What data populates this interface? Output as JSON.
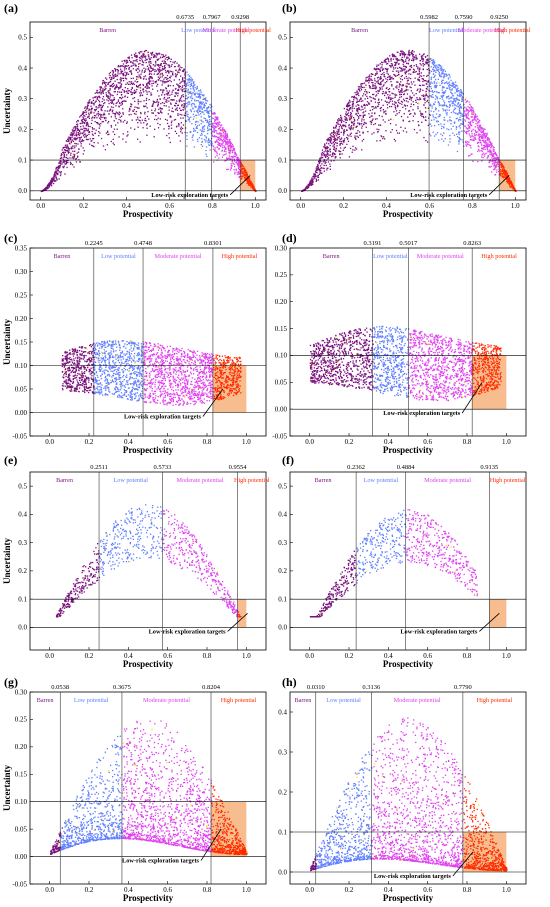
{
  "colors": {
    "barren": "#7b0f7f",
    "low": "#5f7fff",
    "moderate": "#e040f0",
    "high": "#ff2a00",
    "target_box": "#f7b27a",
    "known_deposits": "#ffe000"
  },
  "chart_data": [
    {
      "panel": "(a)",
      "type": "scatter",
      "xlabel": "Prospectivity",
      "ylabel": "Uncertainty",
      "xlim": [
        -0.05,
        1.05
      ],
      "ylim": [
        -0.03,
        0.55
      ],
      "xticks": [
        "0.0",
        "0.2",
        "0.4",
        "0.6",
        "0.8",
        "1.0"
      ],
      "yticks": [
        "0.0",
        "0.1",
        "0.2",
        "0.3",
        "0.4",
        "0.5"
      ],
      "thresholds": [
        0.6735,
        0.7967,
        0.9298
      ],
      "threshold_labels": [
        "0.6735",
        "0.7967",
        "0.9298"
      ],
      "zones": [
        "Barren",
        "Low potential",
        "Moderate potential",
        "High potential"
      ],
      "uncertainty_cutoff": 0.1,
      "target_label": "Low-risk exploration targets",
      "shape": "arch",
      "peak": 0.46,
      "floor": 0.05,
      "center": 0.45,
      "xmin": 0.0,
      "xmax": 1.0
    },
    {
      "panel": "(b)",
      "type": "scatter",
      "xlabel": "Prospectivity",
      "ylabel": "",
      "xlim": [
        -0.05,
        1.05
      ],
      "ylim": [
        -0.03,
        0.55
      ],
      "xticks": [
        "0.0",
        "0.2",
        "0.4",
        "0.6",
        "0.8",
        "1.0"
      ],
      "yticks": [
        "0.0",
        "0.1",
        "0.2",
        "0.3",
        "0.4",
        "0.5"
      ],
      "thresholds": [
        0.5982,
        0.759,
        0.925
      ],
      "threshold_labels": [
        "0.5982",
        "0.7590",
        "0.9250"
      ],
      "zones": [
        "Barren",
        "Low potential",
        "Moderate potential",
        "High potential"
      ],
      "uncertainty_cutoff": 0.1,
      "target_label": "Low-risk exploration targets",
      "shape": "arch",
      "peak": 0.46,
      "floor": 0.05,
      "center": 0.45,
      "xmin": 0.0,
      "xmax": 1.0
    },
    {
      "panel": "(c)",
      "type": "scatter",
      "xlabel": "Prospectivity",
      "ylabel": "Uncertainty",
      "xlim": [
        -0.1,
        1.1
      ],
      "ylim": [
        -0.05,
        0.35
      ],
      "xticks": [
        "0.0",
        "0.2",
        "0.4",
        "0.6",
        "0.8",
        "1.0"
      ],
      "yticks": [
        "-0.05",
        "0.00",
        "0.05",
        "0.10",
        "0.15",
        "0.20",
        "0.25",
        "0.30",
        "0.35"
      ],
      "thresholds": [
        0.2245,
        0.4748,
        0.8301
      ],
      "threshold_labels": [
        "0.2245",
        "0.4748",
        "0.8301"
      ],
      "zones": [
        "Barren",
        "Low potential",
        "Moderate potential",
        "High potential"
      ],
      "uncertainty_cutoff": 0.1,
      "target_label": "Low-risk exploration targets",
      "shape": "band",
      "peak": 0.16,
      "floor": 0.03,
      "center": 0.45,
      "xmin": 0.06,
      "xmax": 0.97
    },
    {
      "panel": "(d)",
      "type": "scatter",
      "xlabel": "Prospectivity",
      "ylabel": "",
      "xlim": [
        -0.1,
        1.1
      ],
      "ylim": [
        -0.05,
        0.3
      ],
      "xticks": [
        "0.0",
        "0.2",
        "0.4",
        "0.6",
        "0.8",
        "1.0"
      ],
      "yticks": [
        "-0.05",
        "0.00",
        "0.05",
        "0.10",
        "0.15",
        "0.20",
        "0.25",
        "0.30"
      ],
      "thresholds": [
        0.3191,
        0.5017,
        0.8263
      ],
      "threshold_labels": [
        "0.3191",
        "0.5017",
        "0.8263"
      ],
      "zones": [
        "Barren",
        "Low potential",
        "Moderate potential",
        "High potential"
      ],
      "uncertainty_cutoff": 0.1,
      "target_label": "Low-risk exploration targets",
      "shape": "band",
      "peak": 0.16,
      "floor": 0.04,
      "center": 0.45,
      "xmin": 0.0,
      "xmax": 0.97
    },
    {
      "panel": "(e)",
      "type": "scatter",
      "xlabel": "Prospectivity",
      "ylabel": "Uncertainty",
      "xlim": [
        -0.1,
        1.1
      ],
      "ylim": [
        -0.08,
        0.55
      ],
      "xticks": [
        "0.0",
        "0.2",
        "0.4",
        "0.6",
        "0.8",
        "1.0"
      ],
      "yticks": [
        "0.0",
        "0.1",
        "0.2",
        "0.3",
        "0.4",
        "0.5"
      ],
      "thresholds": [
        0.2511,
        0.5733,
        0.9554
      ],
      "threshold_labels": [
        "0.2511",
        "0.5733",
        "0.9554"
      ],
      "zones": [
        "Barren",
        "Low potential",
        "Moderate potential",
        "High potential"
      ],
      "uncertainty_cutoff": 0.1,
      "target_label": "Low-risk exploration targets",
      "shape": "sparse",
      "peak": 0.44,
      "floor": 0.04,
      "center": 0.5,
      "xmin": 0.03,
      "xmax": 0.97
    },
    {
      "panel": "(f)",
      "type": "scatter",
      "xlabel": "Prospectivity",
      "ylabel": "",
      "xlim": [
        -0.1,
        1.1
      ],
      "ylim": [
        -0.08,
        0.55
      ],
      "xticks": [
        "0.0",
        "0.2",
        "0.4",
        "0.6",
        "0.8",
        "1.0"
      ],
      "yticks": [
        "0.0",
        "0.1",
        "0.2",
        "0.3",
        "0.4",
        "0.5"
      ],
      "thresholds": [
        0.2362,
        0.4884,
        0.9135
      ],
      "threshold_labels": [
        "0.2362",
        "0.4884",
        "0.9135"
      ],
      "zones": [
        "Barren",
        "Low potential",
        "Moderate potential",
        "High potential"
      ],
      "uncertainty_cutoff": 0.1,
      "target_label": "Low-risk exploration targets",
      "shape": "sparse",
      "peak": 0.42,
      "floor": 0.04,
      "center": 0.45,
      "xmin": 0.0,
      "xmax": 0.85
    },
    {
      "panel": "(g)",
      "type": "scatter",
      "xlabel": "Prospectivity",
      "ylabel": "Uncertainty",
      "xlim": [
        -0.1,
        1.1
      ],
      "ylim": [
        -0.05,
        0.3
      ],
      "xticks": [
        "0.0",
        "0.2",
        "0.4",
        "0.6",
        "0.8",
        "1.0"
      ],
      "yticks": [
        "-0.05",
        "0.00",
        "0.05",
        "0.10",
        "0.15",
        "0.20",
        "0.25",
        "0.30"
      ],
      "thresholds": [
        0.0538,
        0.3675,
        0.8204
      ],
      "threshold_labels": [
        "0.0538",
        "0.3675",
        "0.8204"
      ],
      "zones": [
        "Barren",
        "Low potential",
        "Moderate potential",
        "High potential"
      ],
      "uncertainty_cutoff": 0.1,
      "target_label": "Low-risk exploration targets",
      "shape": "fan",
      "peak": 0.27,
      "floor": 0.005,
      "center": 0.45,
      "xmin": 0.0,
      "xmax": 1.0
    },
    {
      "panel": "(h)",
      "type": "scatter",
      "xlabel": "Prospectivity",
      "ylabel": "",
      "xlim": [
        -0.1,
        1.1
      ],
      "ylim": [
        -0.03,
        0.45
      ],
      "xticks": [
        "0.0",
        "0.2",
        "0.4",
        "0.6",
        "0.8",
        "1.0"
      ],
      "yticks": [
        "0.0",
        "0.1",
        "0.2",
        "0.3",
        "0.4"
      ],
      "thresholds": [
        0.031,
        0.3136,
        0.779
      ],
      "threshold_labels": [
        "0.0310",
        "0.3136",
        "0.7790"
      ],
      "zones": [
        "Barren",
        "Low potential",
        "Moderate potential",
        "High potential"
      ],
      "uncertainty_cutoff": 0.1,
      "target_label": "Low-risk exploration targets",
      "shape": "fan",
      "peak": 0.42,
      "floor": 0.005,
      "center": 0.45,
      "xmin": 0.0,
      "xmax": 1.0
    }
  ]
}
